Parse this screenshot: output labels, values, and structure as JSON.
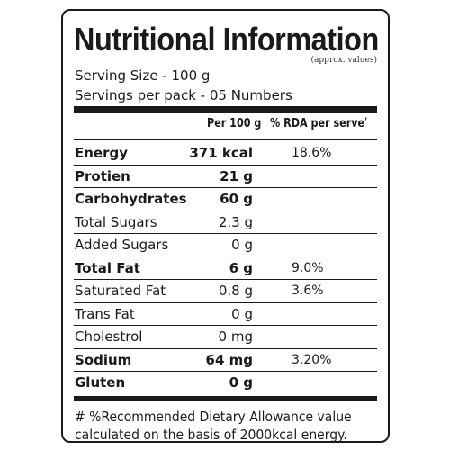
{
  "label": {
    "title": "Nutritional Information",
    "approx_note": "(approx. values)",
    "serving_size": "Serving Size - 100 g",
    "servings_per_pack": "Servings per pack - 05 Numbers",
    "columns": {
      "per_100g": "Per 100 g",
      "rda": "% RDA per serveʹ"
    },
    "rows": [
      {
        "name": "Energy",
        "value": "371 kcal",
        "rda": "18.6%",
        "bold": true
      },
      {
        "name": "Protien",
        "value": "21 g",
        "rda": "",
        "bold": true
      },
      {
        "name": "Carbohydrates",
        "value": "60 g",
        "rda": "",
        "bold": true
      },
      {
        "name": "Total Sugars",
        "value": "2.3 g",
        "rda": "",
        "bold": false
      },
      {
        "name": "Added Sugars",
        "value": "0 g",
        "rda": "",
        "bold": false
      },
      {
        "name": "Total Fat",
        "value": "6 g",
        "rda": "9.0%",
        "bold": true
      },
      {
        "name": "Saturated Fat",
        "value": "0.8 g",
        "rda": "3.6%",
        "bold": false
      },
      {
        "name": "Trans Fat",
        "value": "0 g",
        "rda": "",
        "bold": false
      },
      {
        "name": "Cholestrol",
        "value": "0 mg",
        "rda": "",
        "bold": false
      },
      {
        "name": "Sodium",
        "value": "64 mg",
        "rda": "3.20%",
        "bold": true
      },
      {
        "name": "Gluten",
        "value": "0 g",
        "rda": "",
        "bold": true
      }
    ],
    "footnote": "# %Recommended Dietary Allowance value calculated on the basis of 2000kcal energy."
  }
}
